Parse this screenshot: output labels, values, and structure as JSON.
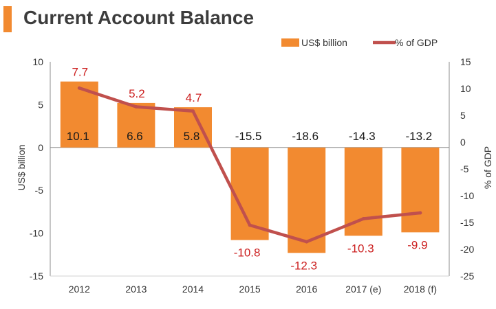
{
  "title": "Current Account Balance",
  "colors": {
    "bar": "#f28a30",
    "line": "#c0504d",
    "bar_label": "#1a1a1a",
    "line_label": "#cc1f1f",
    "axis_text": "#333333",
    "title_accent": "#f28a30"
  },
  "chart_data": {
    "type": "bar",
    "title": "Current Account Balance",
    "categories": [
      "2012",
      "2013",
      "2014",
      "2015",
      "2016",
      "2017 (e)",
      "2018 (f)"
    ],
    "series": [
      {
        "name": "US$ billion",
        "type": "bar",
        "axis": "left",
        "values": [
          7.7,
          5.2,
          4.7,
          -10.8,
          -12.3,
          -10.3,
          -9.9
        ]
      },
      {
        "name": "% of GDP",
        "type": "line",
        "axis": "right",
        "values": [
          10.1,
          6.6,
          5.8,
          -15.5,
          -18.6,
          -14.3,
          -13.2
        ]
      }
    ],
    "ylabel": "US$ billion",
    "y2label": "% of GDP",
    "ylim": [
      -15,
      10
    ],
    "y2lim": [
      -25,
      15
    ],
    "yticks": [
      "10",
      "5",
      "0",
      "-5",
      "-10",
      "-15"
    ],
    "y2ticks": [
      "15",
      "10",
      "5",
      "0",
      "-5",
      "-10",
      "-15",
      "-20",
      "-25"
    ],
    "bar_labels": [
      "7.7",
      "5.2",
      "4.7",
      "-10.8",
      "-12.3",
      "-10.3",
      "-9.9"
    ],
    "line_labels": [
      "10.1",
      "6.6",
      "5.8",
      "-15.5",
      "-18.6",
      "-14.3",
      "-13.2"
    ],
    "legend_position": "top-right",
    "grid": false
  }
}
